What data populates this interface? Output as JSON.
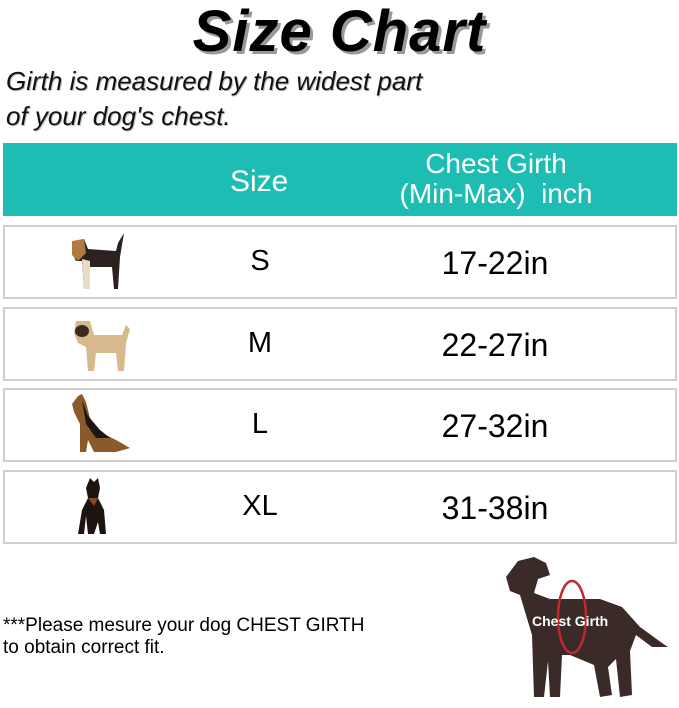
{
  "title": "Size Chart",
  "subtitle_lines": [
    "Girth is measured by the widest part",
    "of your dog's chest."
  ],
  "table": {
    "header_color": "#1ebdb4",
    "headers": {
      "size": "Size",
      "girth_line1": "Chest Girth",
      "girth_line2": "(Min-Max)  inch"
    },
    "rows": [
      {
        "icon": "beagle-dog-icon",
        "size": "S",
        "girth": "17-22in"
      },
      {
        "icon": "pug-dog-icon",
        "size": "M",
        "girth": "22-27in"
      },
      {
        "icon": "german-shepherd-dog-icon",
        "size": "L",
        "girth": "27-32in"
      },
      {
        "icon": "doberman-dog-icon",
        "size": "XL",
        "girth": "31-38in"
      }
    ]
  },
  "note_lines": [
    "***Please mesure your dog CHEST GIRTH",
    "to obtain correct fit."
  ],
  "diagram": {
    "label": "Chest Girth",
    "silhouette_color": "#3a2a28",
    "ring_color": "#c0282f"
  }
}
